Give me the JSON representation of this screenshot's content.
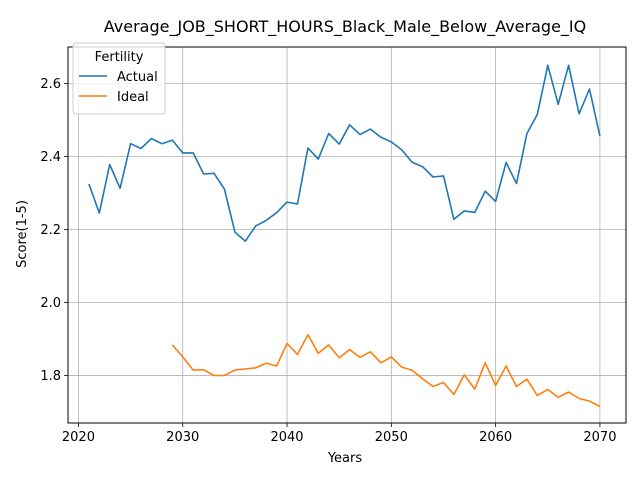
{
  "chart_data": {
    "type": "line",
    "title": "Average_JOB_SHORT_HOURS_Black_Male_Below_Average_IQ",
    "xlabel": "Years",
    "ylabel": "Score(1-5)",
    "xlim": [
      2019.0,
      2072.5
    ],
    "ylim": [
      1.67,
      2.7
    ],
    "xticks": [
      2020,
      2030,
      2040,
      2050,
      2060,
      2070
    ],
    "yticks": [
      1.8,
      2.0,
      2.2,
      2.4,
      2.6
    ],
    "ytick_labels": [
      "1.8",
      "2.0",
      "2.2",
      "2.4",
      "2.6"
    ],
    "grid": true,
    "legend": {
      "title": "Fertility",
      "position": "upper left"
    },
    "series": [
      {
        "name": "Actual",
        "color": "#1f77b4",
        "x": [
          2021,
          2022,
          2023,
          2024,
          2025,
          2026,
          2027,
          2028,
          2029,
          2030,
          2031,
          2032,
          2033,
          2034,
          2035,
          2036,
          2037,
          2038,
          2039,
          2040,
          2041,
          2042,
          2043,
          2044,
          2045,
          2046,
          2047,
          2048,
          2049,
          2050,
          2051,
          2052,
          2053,
          2054,
          2055,
          2056,
          2057,
          2058,
          2059,
          2060,
          2061,
          2062,
          2063,
          2064,
          2065,
          2066,
          2067,
          2068,
          2069,
          2070
        ],
        "y": [
          2.325,
          2.245,
          2.378,
          2.313,
          2.435,
          2.422,
          2.449,
          2.435,
          2.445,
          2.41,
          2.41,
          2.352,
          2.354,
          2.311,
          2.193,
          2.168,
          2.21,
          2.225,
          2.246,
          2.275,
          2.27,
          2.423,
          2.393,
          2.463,
          2.434,
          2.487,
          2.46,
          2.475,
          2.453,
          2.44,
          2.418,
          2.384,
          2.372,
          2.344,
          2.347,
          2.228,
          2.251,
          2.247,
          2.305,
          2.277,
          2.384,
          2.326,
          2.463,
          2.515,
          2.65,
          2.543,
          2.65,
          2.517,
          2.585,
          2.456
        ]
      },
      {
        "name": "Ideal",
        "color": "#ff7f0e",
        "x": [
          2029,
          2030,
          2031,
          2032,
          2033,
          2034,
          2035,
          2036,
          2037,
          2038,
          2039,
          2040,
          2041,
          2042,
          2043,
          2044,
          2045,
          2046,
          2047,
          2048,
          2049,
          2050,
          2051,
          2052,
          2053,
          2054,
          2055,
          2056,
          2057,
          2058,
          2059,
          2060,
          2061,
          2062,
          2063,
          2064,
          2065,
          2066,
          2067,
          2068,
          2069,
          2070
        ],
        "y": [
          1.884,
          1.851,
          1.815,
          1.816,
          1.8,
          1.8,
          1.815,
          1.818,
          1.821,
          1.834,
          1.826,
          1.888,
          1.858,
          1.912,
          1.861,
          1.884,
          1.849,
          1.871,
          1.85,
          1.865,
          1.835,
          1.851,
          1.823,
          1.814,
          1.791,
          1.77,
          1.781,
          1.748,
          1.802,
          1.763,
          1.835,
          1.773,
          1.826,
          1.77,
          1.79,
          1.745,
          1.762,
          1.74,
          1.755,
          1.737,
          1.73,
          1.715
        ]
      }
    ]
  }
}
